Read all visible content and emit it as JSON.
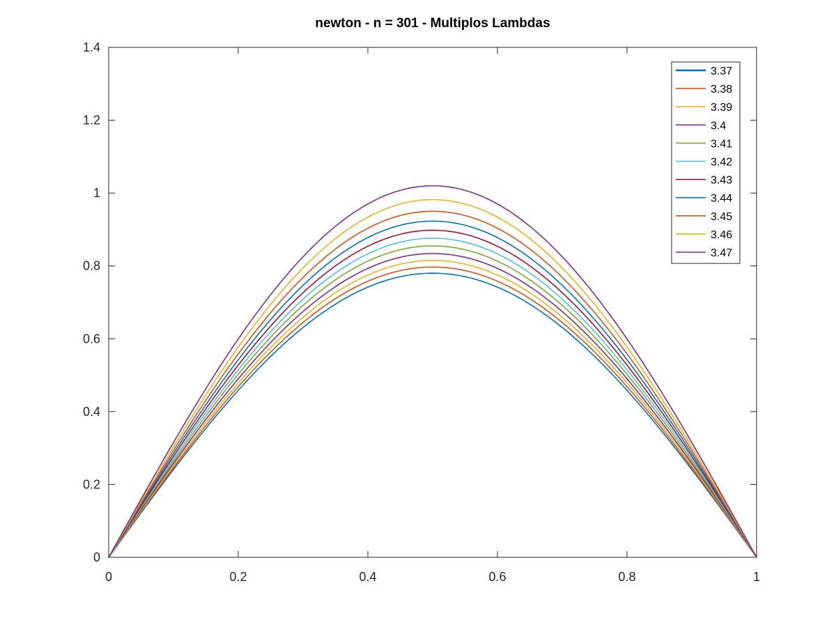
{
  "chart_data": {
    "type": "line",
    "title": "newton - n = 301 - Multiplos Lambdas",
    "xlabel": "",
    "ylabel": "",
    "xlim": [
      0,
      1
    ],
    "ylim": [
      0,
      1.4
    ],
    "x_ticks": [
      0,
      0.2,
      0.4,
      0.6,
      0.8,
      1
    ],
    "x_tick_labels": [
      "0",
      "0.2",
      "0.4",
      "0.6",
      "0.8",
      "1"
    ],
    "y_ticks": [
      0,
      0.2,
      0.4,
      0.6,
      0.8,
      1,
      1.2,
      1.4
    ],
    "y_tick_labels": [
      "0",
      "0.2",
      "0.4",
      "0.6",
      "0.8",
      "1",
      "1.2",
      "1.4"
    ],
    "grid": false,
    "legend_position": "top-right",
    "n": 301,
    "series": [
      {
        "name": "3.37",
        "color": "#0072BD",
        "peak": 0.78
      },
      {
        "name": "3.38",
        "color": "#D95319",
        "peak": 0.797
      },
      {
        "name": "3.39",
        "color": "#EDB120",
        "peak": 0.815
      },
      {
        "name": "3.4",
        "color": "#7E2F8E",
        "peak": 0.834
      },
      {
        "name": "3.41",
        "color": "#77AC30",
        "peak": 0.855
      },
      {
        "name": "3.42",
        "color": "#4DBEEE",
        "peak": 0.876
      },
      {
        "name": "3.43",
        "color": "#A2142F",
        "peak": 0.898
      },
      {
        "name": "3.44",
        "color": "#0072BD",
        "peak": 0.923
      },
      {
        "name": "3.45",
        "color": "#D95319",
        "peak": 0.95
      },
      {
        "name": "3.46",
        "color": "#EDB120",
        "peak": 0.982
      },
      {
        "name": "3.47",
        "color": "#7E2F8E",
        "peak": 1.02
      }
    ]
  }
}
